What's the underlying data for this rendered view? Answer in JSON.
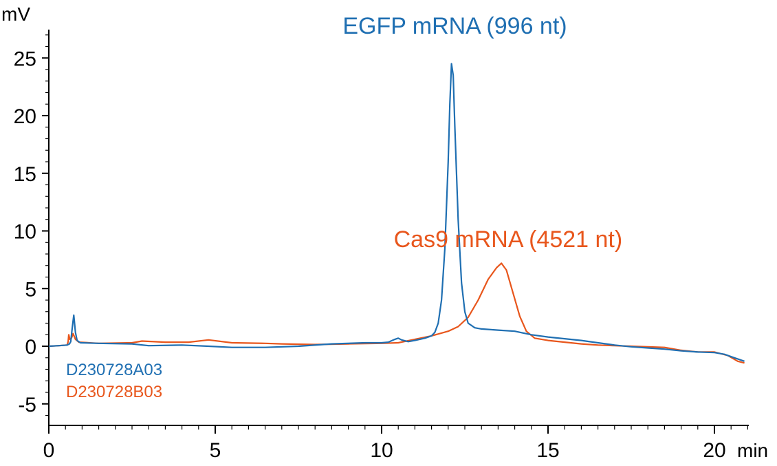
{
  "chart_data": {
    "type": "line",
    "y_unit_label": "mV",
    "x_unit_label": "min",
    "xlim": [
      0,
      21.0
    ],
    "ylim": [
      -7,
      28
    ],
    "x_major_ticks": [
      0,
      5,
      10,
      15,
      20
    ],
    "y_major_ticks": [
      -5,
      0,
      5,
      10,
      15,
      20,
      25
    ],
    "x_minor_step": 0.5,
    "y_minor_step": 1,
    "grid": false,
    "legend_placement": "bottom-left",
    "annotations": [
      {
        "text": "EGFP mRNA (996 nt)",
        "series": 0,
        "x": 12.2,
        "y": 27.1
      },
      {
        "text": "Cas9 mRNA (4521 nt)",
        "series": 1,
        "x": 13.8,
        "y": 8.6
      }
    ],
    "series": [
      {
        "name": "D230728A03",
        "color": "#1f6fb2",
        "points": [
          [
            0,
            0.0
          ],
          [
            0.3,
            0.05
          ],
          [
            0.55,
            0.1
          ],
          [
            0.62,
            0.2
          ],
          [
            0.66,
            0.4
          ],
          [
            0.7,
            1.5
          ],
          [
            0.75,
            2.7
          ],
          [
            0.8,
            1.2
          ],
          [
            0.85,
            0.5
          ],
          [
            0.95,
            0.3
          ],
          [
            1.5,
            0.25
          ],
          [
            2.5,
            0.2
          ],
          [
            3.0,
            0.05
          ],
          [
            4.0,
            0.1
          ],
          [
            4.8,
            0.0
          ],
          [
            5.5,
            -0.1
          ],
          [
            6.5,
            -0.1
          ],
          [
            7.5,
            0.0
          ],
          [
            8.5,
            0.2
          ],
          [
            9.5,
            0.3
          ],
          [
            10.0,
            0.3
          ],
          [
            10.2,
            0.35
          ],
          [
            10.4,
            0.6
          ],
          [
            10.5,
            0.7
          ],
          [
            10.6,
            0.55
          ],
          [
            10.8,
            0.4
          ],
          [
            11.0,
            0.5
          ],
          [
            11.3,
            0.7
          ],
          [
            11.5,
            0.9
          ],
          [
            11.6,
            1.2
          ],
          [
            11.7,
            2.0
          ],
          [
            11.8,
            4.0
          ],
          [
            11.9,
            8.5
          ],
          [
            12.0,
            16.0
          ],
          [
            12.05,
            21.0
          ],
          [
            12.1,
            24.5
          ],
          [
            12.15,
            23.5
          ],
          [
            12.2,
            19.0
          ],
          [
            12.3,
            11.0
          ],
          [
            12.4,
            5.5
          ],
          [
            12.5,
            3.0
          ],
          [
            12.6,
            2.0
          ],
          [
            12.8,
            1.6
          ],
          [
            13.0,
            1.5
          ],
          [
            13.5,
            1.4
          ],
          [
            14.0,
            1.3
          ],
          [
            14.5,
            1.0
          ],
          [
            15.0,
            0.8
          ],
          [
            15.5,
            0.65
          ],
          [
            16.0,
            0.5
          ],
          [
            16.5,
            0.3
          ],
          [
            17.0,
            0.1
          ],
          [
            17.5,
            -0.05
          ],
          [
            18.0,
            -0.15
          ],
          [
            18.5,
            -0.25
          ],
          [
            19.0,
            -0.4
          ],
          [
            19.5,
            -0.5
          ],
          [
            20.0,
            -0.55
          ],
          [
            20.3,
            -0.7
          ],
          [
            20.6,
            -1.0
          ],
          [
            20.9,
            -1.3
          ]
        ]
      },
      {
        "name": "D230728B03",
        "color": "#e8561c",
        "points": [
          [
            0,
            0.0
          ],
          [
            0.3,
            0.05
          ],
          [
            0.55,
            0.1
          ],
          [
            0.58,
            0.4
          ],
          [
            0.6,
            1.0
          ],
          [
            0.63,
            0.6
          ],
          [
            0.68,
            0.7
          ],
          [
            0.73,
            1.1
          ],
          [
            0.8,
            0.6
          ],
          [
            0.9,
            0.35
          ],
          [
            1.5,
            0.25
          ],
          [
            2.5,
            0.3
          ],
          [
            2.8,
            0.45
          ],
          [
            3.5,
            0.35
          ],
          [
            4.2,
            0.35
          ],
          [
            4.8,
            0.55
          ],
          [
            5.5,
            0.3
          ],
          [
            6.5,
            0.25
          ],
          [
            7.0,
            0.2
          ],
          [
            8.0,
            0.15
          ],
          [
            9.0,
            0.2
          ],
          [
            10.0,
            0.25
          ],
          [
            10.5,
            0.3
          ],
          [
            11.0,
            0.6
          ],
          [
            11.5,
            0.9
          ],
          [
            12.0,
            1.3
          ],
          [
            12.3,
            1.7
          ],
          [
            12.6,
            2.5
          ],
          [
            12.9,
            4.0
          ],
          [
            13.2,
            5.8
          ],
          [
            13.45,
            6.8
          ],
          [
            13.6,
            7.2
          ],
          [
            13.75,
            6.6
          ],
          [
            13.95,
            4.6
          ],
          [
            14.15,
            2.6
          ],
          [
            14.35,
            1.3
          ],
          [
            14.6,
            0.7
          ],
          [
            15.0,
            0.5
          ],
          [
            15.5,
            0.35
          ],
          [
            16.0,
            0.2
          ],
          [
            16.5,
            0.1
          ],
          [
            17.0,
            0.05
          ],
          [
            17.5,
            0.0
          ],
          [
            18.0,
            -0.05
          ],
          [
            18.5,
            -0.1
          ],
          [
            19.0,
            -0.35
          ],
          [
            19.5,
            -0.5
          ],
          [
            20.0,
            -0.5
          ],
          [
            20.4,
            -0.8
          ],
          [
            20.7,
            -1.3
          ],
          [
            20.9,
            -1.45
          ]
        ]
      }
    ]
  }
}
